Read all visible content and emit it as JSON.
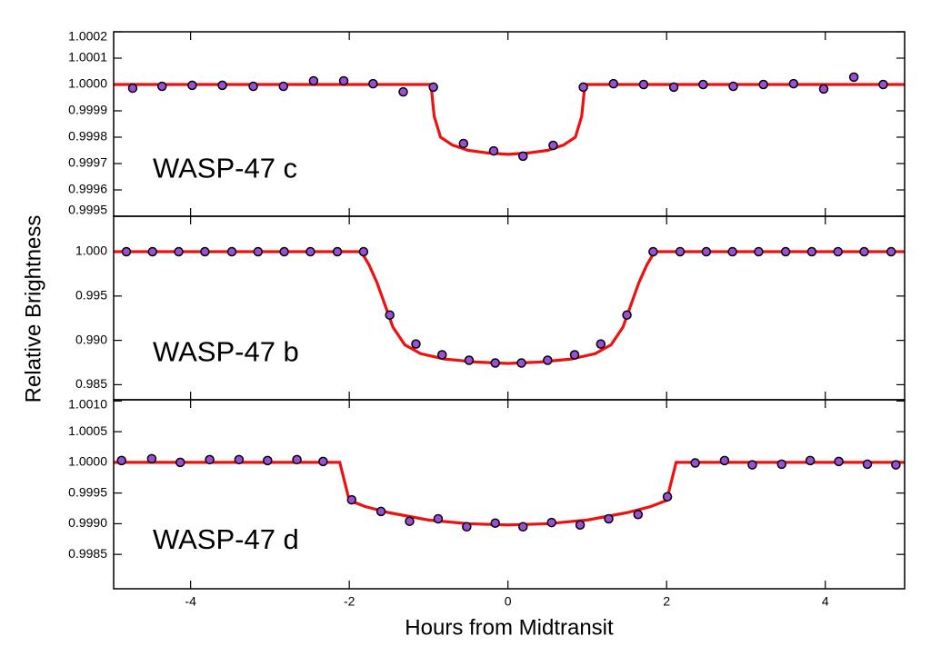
{
  "chart_data": [
    {
      "type": "scatter",
      "annotation": "WASP-47 c",
      "xlim": [
        -4.97,
        5
      ],
      "xticks": [
        -4,
        -2,
        0,
        2,
        4
      ],
      "ylim": [
        0.9995,
        1.0002
      ],
      "yticks": [
        {
          "value": 1.0002,
          "label": "1.0002"
        },
        1.0001,
        {
          "value": 1,
          "label": "1.0000"
        },
        0.9999,
        0.9998,
        0.9997,
        0.9996,
        0.9995
      ],
      "series": [
        {
          "type": "line",
          "color": "#ee1111",
          "x": [
            -4.97,
            -0.97,
            -0.93,
            -0.85,
            -0.7,
            -0.5,
            -0.25,
            0,
            0.25,
            0.5,
            0.7,
            0.85,
            0.93,
            0.97,
            5
          ],
          "values": [
            1,
            1,
            0.99988,
            0.9998,
            0.99977,
            0.99975,
            0.99974,
            0.999735,
            0.99974,
            0.99975,
            0.99977,
            0.9998,
            0.99988,
            1,
            1
          ]
        },
        {
          "type": "scatter",
          "color": "#9b4fd6",
          "x": [
            -4.73,
            -4.36,
            -3.98,
            -3.6,
            -3.21,
            -2.83,
            -2.45,
            -2.07,
            -1.7,
            -1.32,
            -0.94,
            -0.56,
            -0.18,
            0.19,
            0.57,
            0.95,
            1.33,
            1.71,
            2.09,
            2.46,
            2.84,
            3.22,
            3.6,
            3.98,
            4.36,
            4.73
          ],
          "values": [
            0.999986,
            0.999993,
            0.999997,
            0.999997,
            0.999993,
            0.999993,
            1.000014,
            1.000014,
            1.000003,
            0.999972,
            0.99999,
            0.999776,
            0.999748,
            0.999728,
            0.999769,
            0.99999,
            1.000003,
            1,
            0.99999,
            1,
            0.999993,
            1,
            1.000003,
            0.999983,
            1.000028,
            1
          ]
        }
      ]
    },
    {
      "type": "scatter",
      "annotation": "WASP-47 b",
      "ylabel": "Relative Brightness",
      "xlim": [
        -4.97,
        5
      ],
      "xticks": [
        -4,
        -2,
        0,
        2,
        4
      ],
      "ylim": [
        0.9833,
        1.004
      ],
      "yticks": [
        {
          "value": 1,
          "label": "1.000"
        },
        0.995,
        {
          "value": 0.99,
          "label": "0.990"
        },
        0.985
      ],
      "series": [
        {
          "type": "line",
          "color": "#ee1111",
          "x": [
            -4.97,
            -1.85,
            -1.75,
            -1.65,
            -1.55,
            -1.45,
            -1.3,
            -1.1,
            -0.8,
            -0.4,
            0,
            0.4,
            0.8,
            1.1,
            1.3,
            1.45,
            1.55,
            1.65,
            1.75,
            1.85,
            5
          ],
          "values": [
            1,
            1,
            0.9985,
            0.9965,
            0.994,
            0.9915,
            0.9895,
            0.9885,
            0.9879,
            0.98755,
            0.9874,
            0.98755,
            0.9879,
            0.9885,
            0.9895,
            0.9915,
            0.994,
            0.9965,
            0.9985,
            1,
            1
          ]
        },
        {
          "type": "scatter",
          "color": "#9b4fd6",
          "x": [
            -4.81,
            -4.48,
            -4.15,
            -3.82,
            -3.48,
            -3.15,
            -2.82,
            -2.49,
            -2.15,
            -1.82,
            -1.49,
            -1.16,
            -0.83,
            -0.49,
            -0.16,
            0.17,
            0.5,
            0.84,
            1.17,
            1.5,
            1.83,
            2.17,
            2.5,
            2.83,
            3.16,
            3.5,
            3.83,
            4.16,
            4.49,
            4.83
          ],
          "values": [
            1,
            1,
            1,
            1,
            1,
            1,
            1,
            1,
            1,
            1,
            0.99286,
            0.98959,
            0.98837,
            0.98776,
            0.98745,
            0.98745,
            0.98776,
            0.98837,
            0.98959,
            0.99286,
            1,
            1,
            1,
            1,
            1,
            1,
            1,
            1,
            1,
            1
          ]
        }
      ]
    },
    {
      "type": "scatter",
      "annotation": "WASP-47 d",
      "xlabel": "Hours from Midtransit",
      "xlim": [
        -4.97,
        5
      ],
      "xticks": [
        -4,
        -2,
        0,
        2,
        4
      ],
      "ylim": [
        0.99794,
        1.00102
      ],
      "yticks": [
        {
          "value": 1.001,
          "label": "1.0010"
        },
        1.0005,
        {
          "value": 1,
          "label": "1.0000"
        },
        0.9995,
        {
          "value": 0.999,
          "label": "0.9990"
        },
        0.9985
      ],
      "series": [
        {
          "type": "line",
          "color": "#ee1111",
          "x": [
            -4.97,
            -2.12,
            -2.0,
            -1.8,
            -1.5,
            -1.0,
            -0.5,
            0,
            0.5,
            1.0,
            1.5,
            1.8,
            2.0,
            2.12,
            5
          ],
          "values": [
            1,
            1,
            0.99938,
            0.99928,
            0.99918,
            0.99906,
            0.999,
            0.99898,
            0.999,
            0.99906,
            0.99918,
            0.99928,
            0.99938,
            1,
            1
          ]
        },
        {
          "type": "scatter",
          "color": "#9b4fd6",
          "x": [
            -4.87,
            -4.49,
            -4.13,
            -3.76,
            -3.39,
            -3.03,
            -2.66,
            -2.33,
            -1.97,
            -1.6,
            -1.24,
            -0.88,
            -0.52,
            -0.16,
            0.19,
            0.55,
            0.91,
            1.27,
            1.64,
            2.01,
            2.36,
            2.73,
            3.08,
            3.45,
            3.81,
            4.17,
            4.53,
            4.89
          ],
          "values": [
            1.00003,
            1.00006,
            1,
            1.000045,
            1.000045,
            1.00003,
            1.000045,
            1.000015,
            0.99939,
            0.9992,
            0.99904,
            0.99908,
            0.99895,
            0.99901,
            0.99895,
            0.99902,
            0.99898,
            0.99908,
            0.99915,
            0.99944,
            0.99999,
            1.00003,
            0.99996,
            0.99997,
            1.00003,
            1.000015,
            0.99997,
            0.99996
          ]
        }
      ]
    }
  ]
}
